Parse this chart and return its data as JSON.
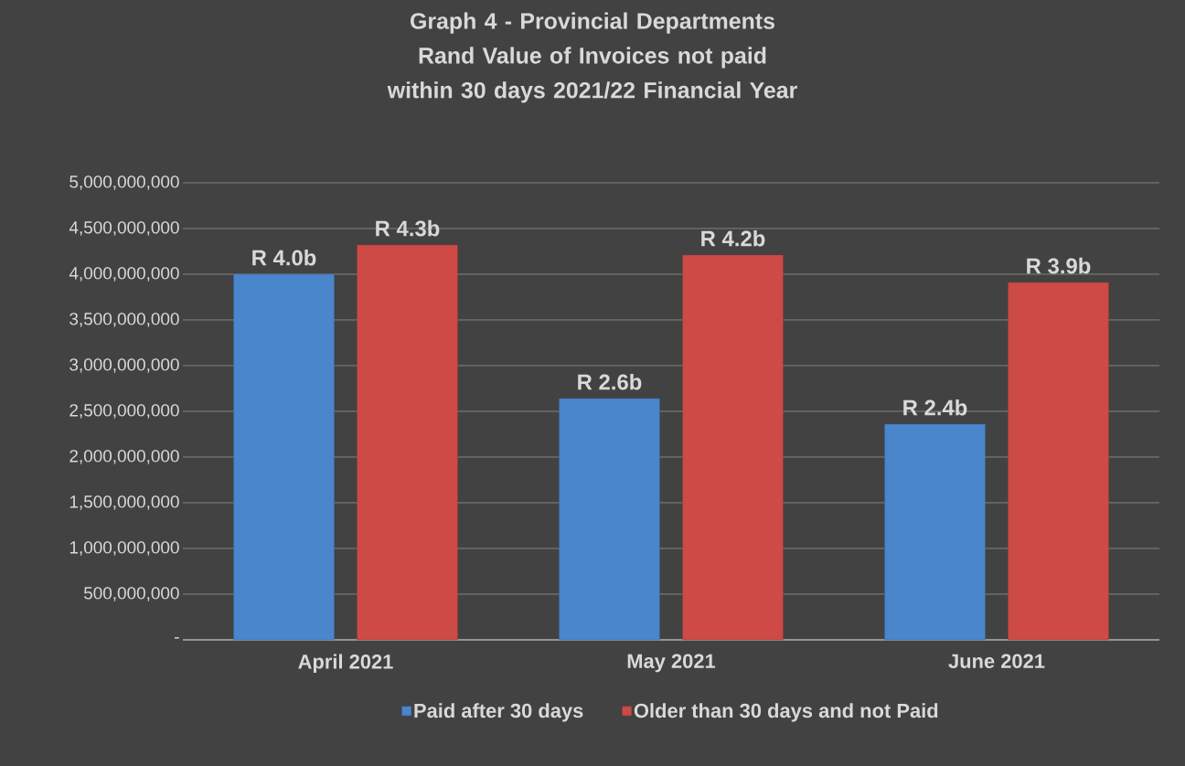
{
  "chart_data": {
    "type": "bar",
    "title": "Graph 4 - Provincial Departments",
    "subtitle": "Rand Value of Invoices not paid within 30 days 2021/22 Financial Year",
    "categories": [
      "April 2021",
      "May 2021",
      "June 2021"
    ],
    "series": [
      {
        "name": "Paid after 30 days",
        "color": "#4a86cc",
        "values": [
          4000000000,
          2640000000,
          2360000000
        ],
        "value_labels": [
          "R 4.0b",
          "R 2.6b",
          "R 2.4b"
        ]
      },
      {
        "name": "Older than 30 days and not Paid",
        "color": "#cd4a47",
        "values": [
          4320000000,
          4210000000,
          3910000000
        ],
        "value_labels": [
          "R 4.3b",
          "R 4.2b",
          "R 3.9b"
        ]
      }
    ],
    "ylim": [
      0,
      5000000000
    ],
    "yticks": [
      {
        "value": 0,
        "label": "-"
      },
      {
        "value": 500000000,
        "label": "500,000,000"
      },
      {
        "value": 1000000000,
        "label": "1,000,000,000"
      },
      {
        "value": 1500000000,
        "label": "1,500,000,000"
      },
      {
        "value": 2000000000,
        "label": "2,000,000,000"
      },
      {
        "value": 2500000000,
        "label": "2,500,000,000"
      },
      {
        "value": 3000000000,
        "label": "3,000,000,000"
      },
      {
        "value": 3500000000,
        "label": "3,500,000,000"
      },
      {
        "value": 4000000000,
        "label": "4,000,000,000"
      },
      {
        "value": 4500000000,
        "label": "4,500,000,000"
      },
      {
        "value": 5000000000,
        "label": "5,000,000,000"
      }
    ],
    "grid": "y",
    "legend": "bottom"
  }
}
